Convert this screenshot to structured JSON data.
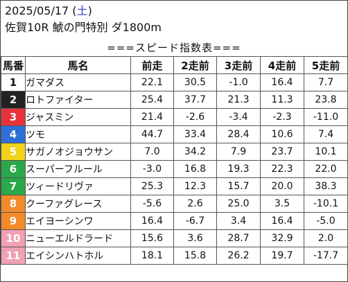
{
  "header": {
    "date": "2025/05/17",
    "weekday": "土",
    "race": "佐賀10R 鯱の門特別 ダ1800m"
  },
  "sheet_title": "===スピード指数表===",
  "table": {
    "columns": [
      "馬番",
      "馬名",
      "前走",
      "2走前",
      "3走前",
      "4走前",
      "5走前"
    ],
    "rows": [
      {
        "num": "1",
        "name": "ガマダス",
        "v": [
          "22.1",
          "30.5",
          "-1.0",
          "16.4",
          "7.7"
        ],
        "bg": "#ffffff",
        "fg": "#111111"
      },
      {
        "num": "2",
        "name": "ロトファイター",
        "v": [
          "25.4",
          "37.7",
          "21.3",
          "11.3",
          "23.8"
        ],
        "bg": "#222222",
        "fg": "#ffffff"
      },
      {
        "num": "3",
        "name": "ジャスミン",
        "v": [
          "21.4",
          "-2.6",
          "-3.4",
          "-2.3",
          "-11.0"
        ],
        "bg": "#e8323a",
        "fg": "#ffffff"
      },
      {
        "num": "4",
        "name": "ツモ",
        "v": [
          "44.7",
          "33.4",
          "28.4",
          "10.6",
          "7.4"
        ],
        "bg": "#2e6fd8",
        "fg": "#ffffff"
      },
      {
        "num": "5",
        "name": "サガノオジョウサン",
        "v": [
          "7.0",
          "34.2",
          "7.9",
          "23.7",
          "10.1"
        ],
        "bg": "#f2d21b",
        "fg": "#ffffff"
      },
      {
        "num": "6",
        "name": "スーパーフルール",
        "v": [
          "-3.0",
          "16.8",
          "19.3",
          "22.3",
          "22.0"
        ],
        "bg": "#2aa84a",
        "fg": "#ffffff"
      },
      {
        "num": "7",
        "name": "ツィードリヴァ",
        "v": [
          "25.3",
          "12.3",
          "15.7",
          "20.0",
          "38.3"
        ],
        "bg": "#2aa84a",
        "fg": "#ffffff"
      },
      {
        "num": "8",
        "name": "クーファグレース",
        "v": [
          "-5.6",
          "2.6",
          "25.0",
          "3.5",
          "-10.1"
        ],
        "bg": "#f28a2a",
        "fg": "#ffffff"
      },
      {
        "num": "9",
        "name": "エイヨーシンワ",
        "v": [
          "16.4",
          "-6.7",
          "3.4",
          "16.4",
          "-5.0"
        ],
        "bg": "#f28a2a",
        "fg": "#ffffff"
      },
      {
        "num": "10",
        "name": "ニューエルドラード",
        "v": [
          "15.6",
          "3.6",
          "28.7",
          "32.9",
          "2.0"
        ],
        "bg": "#f2a0b4",
        "fg": "#ffffff"
      },
      {
        "num": "11",
        "name": "エイシンハトホル",
        "v": [
          "18.1",
          "15.8",
          "26.2",
          "19.7",
          "-17.7"
        ],
        "bg": "#f2a0b4",
        "fg": "#ffffff"
      }
    ]
  }
}
